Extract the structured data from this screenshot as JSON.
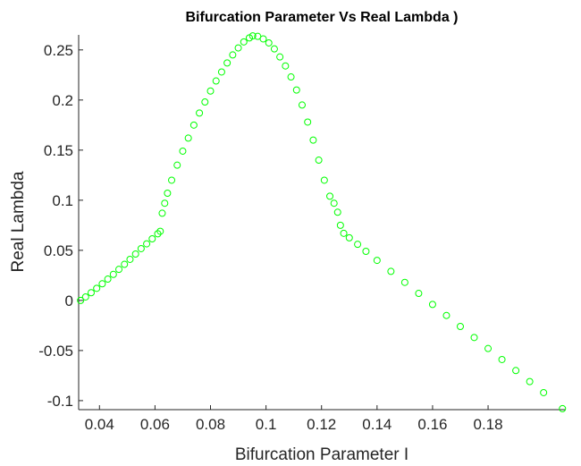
{
  "chart_data": {
    "type": "scatter",
    "title": "Bifurcation Parameter Vs Real Lambda )",
    "xlabel": "Bifurcation Parameter I",
    "ylabel": "Real Lambda",
    "color": "#00ff00",
    "x": [
      0.0332,
      0.035,
      0.037,
      0.039,
      0.041,
      0.043,
      0.045,
      0.047,
      0.049,
      0.051,
      0.053,
      0.055,
      0.057,
      0.059,
      0.061,
      0.0619,
      0.0626,
      0.0635,
      0.0645,
      0.066,
      0.068,
      0.07,
      0.072,
      0.074,
      0.076,
      0.078,
      0.08,
      0.082,
      0.084,
      0.086,
      0.088,
      0.09,
      0.092,
      0.094,
      0.0952,
      0.097,
      0.099,
      0.101,
      0.103,
      0.105,
      0.107,
      0.109,
      0.111,
      0.113,
      0.115,
      0.117,
      0.119,
      0.121,
      0.123,
      0.1245,
      0.1258,
      0.1268,
      0.128,
      0.13,
      0.133,
      0.136,
      0.14,
      0.145,
      0.15,
      0.155,
      0.16,
      0.165,
      0.17,
      0.175,
      0.18,
      0.185,
      0.19,
      0.195,
      0.2,
      0.2068
    ],
    "values": [
      0,
      0.0035,
      0.0077,
      0.0121,
      0.0166,
      0.0213,
      0.026,
      0.031,
      0.036,
      0.041,
      0.0463,
      0.0517,
      0.0565,
      0.0615,
      0.0665,
      0.069,
      0.087,
      0.097,
      0.107,
      0.12,
      0.135,
      0.149,
      0.162,
      0.175,
      0.187,
      0.198,
      0.209,
      0.219,
      0.228,
      0.237,
      0.245,
      0.252,
      0.258,
      0.262,
      0.264,
      0.2635,
      0.261,
      0.257,
      0.251,
      0.243,
      0.234,
      0.223,
      0.21,
      0.195,
      0.178,
      0.16,
      0.14,
      0.12,
      0.104,
      0.097,
      0.088,
      0.075,
      0.067,
      0.0625,
      0.056,
      0.049,
      0.04,
      0.029,
      0.018,
      0.007,
      -0.004,
      -0.015,
      -0.026,
      -0.037,
      -0.048,
      -0.059,
      -0.07,
      -0.081,
      -0.092,
      -0.108
    ],
    "xlim": [
      0.0325,
      0.208
    ],
    "ylim": [
      -0.109,
      0.265
    ],
    "xticks": [
      0.04,
      0.06,
      0.08,
      0.1,
      0.12,
      0.14,
      0.16,
      0.18
    ],
    "yticks": [
      -0.1,
      -0.05,
      0,
      0.05,
      0.1,
      0.15,
      0.2,
      0.25
    ]
  }
}
